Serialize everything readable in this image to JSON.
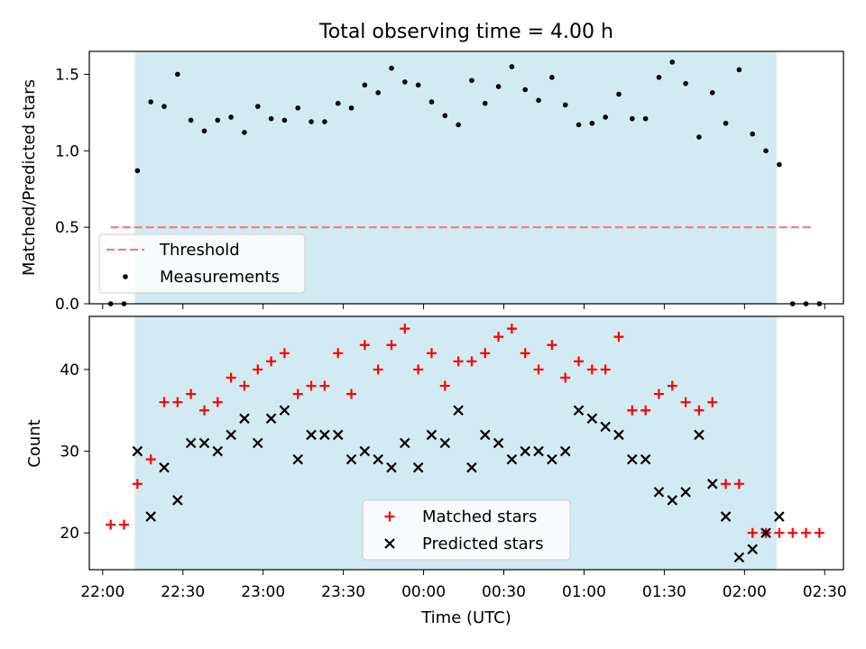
{
  "figure_title": "Total observing time = 4.00 h",
  "colors": {
    "shade": "#add8e6",
    "threshold": "#f08080",
    "measurements": "#000000",
    "matched": "#ff0000",
    "predicted": "#000000"
  },
  "chart_data": [
    {
      "type": "scatter",
      "panel": "top",
      "title": "Total observing time = 4.00 h",
      "xlabel": "",
      "ylabel": "Matched/Predicted stars",
      "yticks": [
        "0.0",
        "0.5",
        "1.0",
        "1.5"
      ],
      "ytick_values": [
        0.0,
        0.5,
        1.0,
        1.5
      ],
      "ylim": [
        0.0,
        1.65
      ],
      "shaded_interval": [
        "22:12",
        "02:12"
      ],
      "threshold": {
        "name": "Threshold",
        "value": 0.5,
        "x_range": [
          "22:03",
          "02:26"
        ],
        "style": "dashed"
      },
      "legend": {
        "position": "lower-left",
        "entries": [
          "Threshold",
          "Measurements"
        ]
      },
      "series": [
        {
          "name": "Measurements",
          "x": [
            "22:03",
            "22:08",
            "22:13",
            "22:18",
            "22:23",
            "22:28",
            "22:33",
            "22:38",
            "22:43",
            "22:48",
            "22:53",
            "22:58",
            "23:03",
            "23:08",
            "23:13",
            "23:18",
            "23:23",
            "23:28",
            "23:33",
            "23:38",
            "23:43",
            "23:48",
            "23:53",
            "23:58",
            "00:03",
            "00:08",
            "00:13",
            "00:18",
            "00:23",
            "00:28",
            "00:33",
            "00:38",
            "00:43",
            "00:48",
            "00:53",
            "00:58",
            "01:03",
            "01:08",
            "01:13",
            "01:18",
            "01:23",
            "01:28",
            "01:33",
            "01:38",
            "01:43",
            "01:48",
            "01:53",
            "01:58",
            "02:03",
            "02:08",
            "02:13",
            "02:18",
            "02:23",
            "02:28"
          ],
          "values": [
            0.0,
            0.0,
            0.87,
            1.32,
            1.29,
            1.5,
            1.2,
            1.13,
            1.2,
            1.22,
            1.12,
            1.29,
            1.21,
            1.2,
            1.28,
            1.19,
            1.19,
            1.31,
            1.28,
            1.43,
            1.38,
            1.54,
            1.45,
            1.43,
            1.32,
            1.23,
            1.17,
            1.46,
            1.31,
            1.42,
            1.55,
            1.4,
            1.33,
            1.48,
            1.3,
            1.17,
            1.18,
            1.22,
            1.37,
            1.21,
            1.21,
            1.48,
            1.58,
            1.44,
            1.09,
            1.38,
            1.18,
            1.53,
            1.11,
            1.0,
            0.91,
            0.0,
            0.0,
            0.0
          ]
        }
      ]
    },
    {
      "type": "scatter",
      "panel": "bottom",
      "title": "",
      "xlabel": "Time (UTC)",
      "ylabel": "Count",
      "xticks": [
        "22:00",
        "22:30",
        "23:00",
        "23:30",
        "00:00",
        "00:30",
        "01:00",
        "01:30",
        "02:00",
        "02:30"
      ],
      "xlim": [
        "21:55",
        "02:37"
      ],
      "yticks": [
        "20",
        "30",
        "40"
      ],
      "ytick_values": [
        20,
        30,
        40
      ],
      "ylim": [
        15.5,
        46.5
      ],
      "shaded_interval": [
        "22:12",
        "02:12"
      ],
      "legend": {
        "position": "lower-center",
        "entries": [
          "Matched stars",
          "Predicted stars"
        ]
      },
      "x": [
        "22:03",
        "22:08",
        "22:13",
        "22:18",
        "22:23",
        "22:28",
        "22:33",
        "22:38",
        "22:43",
        "22:48",
        "22:53",
        "22:58",
        "23:03",
        "23:08",
        "23:13",
        "23:18",
        "23:23",
        "23:28",
        "23:33",
        "23:38",
        "23:43",
        "23:48",
        "23:53",
        "23:58",
        "00:03",
        "00:08",
        "00:13",
        "00:18",
        "00:23",
        "00:28",
        "00:33",
        "00:38",
        "00:43",
        "00:48",
        "00:53",
        "00:58",
        "01:03",
        "01:08",
        "01:13",
        "01:18",
        "01:23",
        "01:28",
        "01:33",
        "01:38",
        "01:43",
        "01:48",
        "01:53",
        "01:58",
        "02:03",
        "02:08",
        "02:13",
        "02:18",
        "02:23",
        "02:28"
      ],
      "series": [
        {
          "name": "Matched stars",
          "marker": "+",
          "values": [
            21,
            21,
            26,
            29,
            36,
            36,
            37,
            35,
            36,
            39,
            38,
            40,
            41,
            42,
            37,
            38,
            38,
            42,
            37,
            43,
            40,
            43,
            45,
            40,
            42,
            38,
            41,
            41,
            42,
            44,
            45,
            42,
            40,
            43,
            39,
            41,
            40,
            40,
            44,
            35,
            35,
            37,
            38,
            36,
            35,
            36,
            26,
            26,
            20,
            20,
            20,
            20,
            20,
            20
          ]
        },
        {
          "name": "Predicted stars",
          "marker": "x",
          "values": [
            null,
            null,
            30,
            22,
            28,
            24,
            31,
            31,
            30,
            32,
            34,
            31,
            34,
            35,
            29,
            32,
            32,
            32,
            29,
            30,
            29,
            28,
            31,
            28,
            32,
            31,
            35,
            28,
            32,
            31,
            29,
            30,
            30,
            29,
            30,
            35,
            34,
            33,
            32,
            29,
            29,
            25,
            24,
            25,
            32,
            26,
            22,
            17,
            18,
            20,
            22,
            null,
            null,
            null
          ]
        }
      ]
    }
  ]
}
